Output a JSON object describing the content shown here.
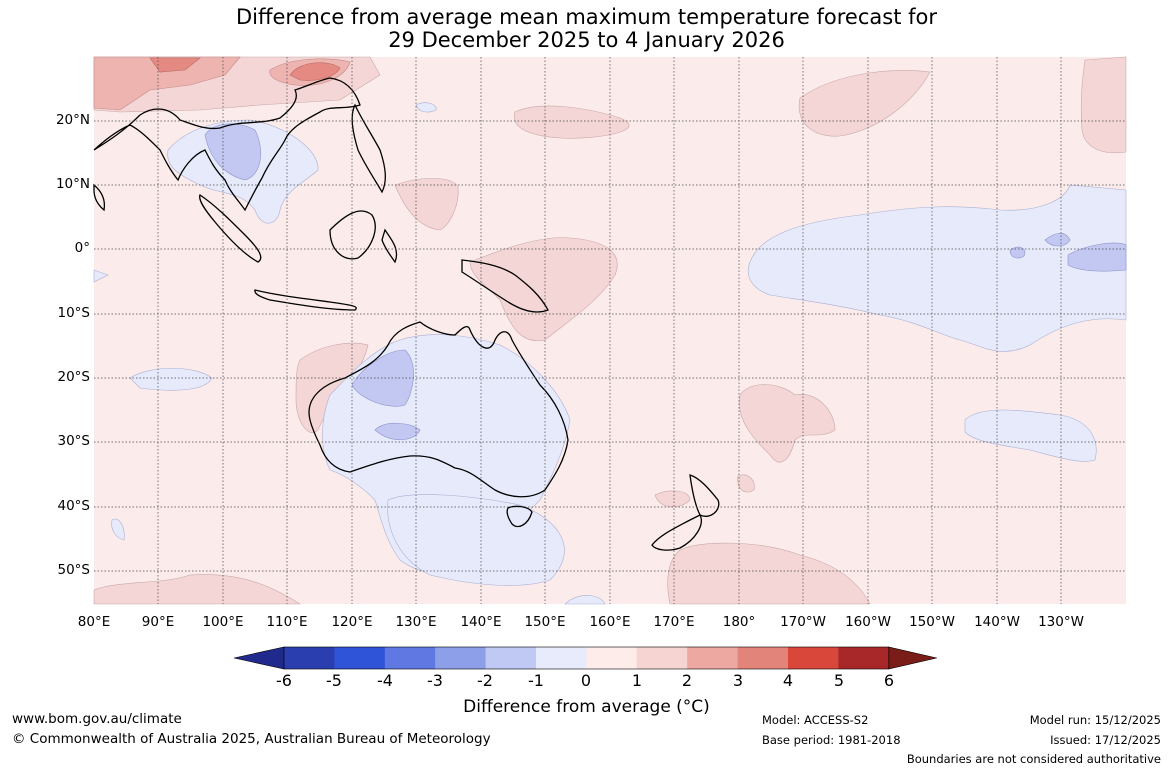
{
  "title_line1": "Difference from average mean maximum temperature forecast for",
  "title_line2": "29 December 2025 to 4 January 2026",
  "lat_labels": [
    "20°N",
    "10°N",
    "0°",
    "10°S",
    "20°S",
    "30°S",
    "40°S",
    "50°S"
  ],
  "lon_labels": [
    "80°E",
    "90°E",
    "100°E",
    "110°E",
    "120°E",
    "130°E",
    "140°E",
    "150°E",
    "160°E",
    "170°E",
    "180°",
    "170°W",
    "160°W",
    "150°W",
    "140°W",
    "130°W"
  ],
  "colorbar": {
    "ticks": [
      "-6",
      "-5",
      "-4",
      "-3",
      "-2",
      "-1",
      "0",
      "1",
      "2",
      "3",
      "4",
      "5",
      "6"
    ],
    "colors": [
      "#1f2a8c",
      "#2a3eb0",
      "#3054d8",
      "#5f78e2",
      "#8d9fe9",
      "#c0c9f3",
      "#e8ebfb",
      "#fdecea",
      "#f5d4d2",
      "#eca8a1",
      "#e3847a",
      "#d9473a",
      "#a8282a",
      "#7a1c18"
    ],
    "label": "Difference from average (°C)"
  },
  "footer": {
    "website": "www.bom.gov.au/climate",
    "copyright": "© Commonwealth of Australia 2025, Australian Bureau of Meteorology",
    "model": "Model: ACCESS-S2",
    "base_period": "Base period: 1981-2018",
    "model_run": "Model run: 15/12/2025",
    "issued": "Issued: 17/12/2025",
    "disclaimer": "Boundaries are not considered authoritative"
  }
}
